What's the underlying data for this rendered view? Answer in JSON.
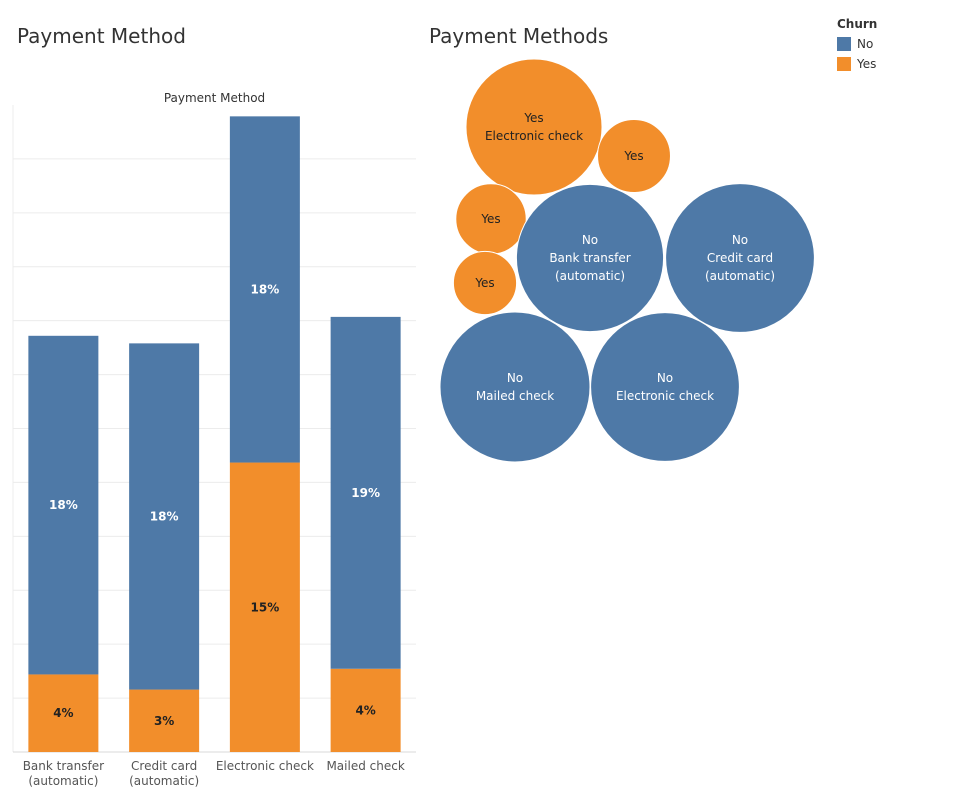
{
  "colors": {
    "No": "#4e79a7",
    "Yes": "#f28e2b",
    "grid": "#ececec",
    "axis": "#d9d9d9"
  },
  "bar_panel_title": "Payment Method",
  "bubble_panel_title": "Payment Methods",
  "legend": {
    "title": "Churn",
    "items": [
      {
        "label": "No",
        "color": "#4e79a7"
      },
      {
        "label": "Yes",
        "color": "#f28e2b"
      }
    ]
  },
  "chart_data": [
    {
      "type": "bar",
      "stacked": true,
      "title": "Payment Method",
      "categories": [
        [
          "Bank transfer",
          "(automatic)"
        ],
        [
          "Credit card",
          "(automatic)"
        ],
        [
          "Electronic check"
        ],
        [
          "Mailed check"
        ]
      ],
      "series": [
        {
          "name": "Yes",
          "values": [
            4.1,
            3.3,
            15.3,
            4.4
          ],
          "labels": [
            "4%",
            "3%",
            "15%",
            "4%"
          ]
        },
        {
          "name": "No",
          "values": [
            17.9,
            18.3,
            18.3,
            18.6
          ],
          "labels": [
            "18%",
            "18%",
            "18%",
            "19%"
          ]
        }
      ],
      "ylim": [
        0,
        34.2
      ],
      "grid": true
    },
    {
      "type": "bubble",
      "title": "Payment Methods",
      "points": [
        {
          "churn": "Yes",
          "method": "Electronic check",
          "value": 15.3
        },
        {
          "churn": "Yes",
          "method": "",
          "value": 4.4
        },
        {
          "churn": "Yes",
          "method": "",
          "value": 4.1
        },
        {
          "churn": "Yes",
          "method": "",
          "value": 3.3
        },
        {
          "churn": "No",
          "method": "Bank transfer (automatic)",
          "value": 17.9
        },
        {
          "churn": "No",
          "method": "Credit card (automatic)",
          "value": 18.3
        },
        {
          "churn": "No",
          "method": "Mailed check",
          "value": 18.6
        },
        {
          "churn": "No",
          "method": "Electronic check",
          "value": 18.3
        }
      ]
    }
  ]
}
